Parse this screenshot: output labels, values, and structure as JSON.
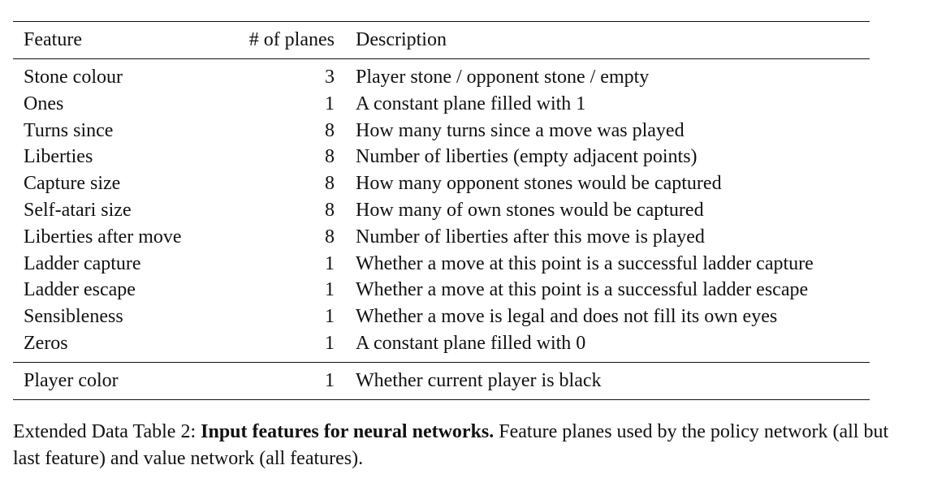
{
  "table": {
    "headers": {
      "feature": "Feature",
      "planes": "# of planes",
      "description": "Description"
    },
    "rows": [
      {
        "feature": "Stone colour",
        "planes": "3",
        "description": "Player stone / opponent stone / empty"
      },
      {
        "feature": "Ones",
        "planes": "1",
        "description": "A constant plane filled with 1"
      },
      {
        "feature": "Turns since",
        "planes": "8",
        "description": "How many turns since a move was played"
      },
      {
        "feature": "Liberties",
        "planes": "8",
        "description": "Number of liberties (empty adjacent points)"
      },
      {
        "feature": "Capture size",
        "planes": "8",
        "description": "How many opponent stones would be captured"
      },
      {
        "feature": "Self-atari size",
        "planes": "8",
        "description": "How many of own stones would be captured"
      },
      {
        "feature": "Liberties after move",
        "planes": "8",
        "description": "Number of liberties after this move is played"
      },
      {
        "feature": "Ladder capture",
        "planes": "1",
        "description": "Whether a move at this point is a successful ladder capture"
      },
      {
        "feature": "Ladder escape",
        "planes": "1",
        "description": "Whether a move at this point is a successful ladder escape"
      },
      {
        "feature": "Sensibleness",
        "planes": "1",
        "description": "Whether a move is legal and does not fill its own eyes"
      },
      {
        "feature": "Zeros",
        "planes": "1",
        "description": "A constant plane filled with 0"
      }
    ],
    "extra_row": {
      "feature": "Player color",
      "planes": "1",
      "description": "Whether current player is black"
    }
  },
  "caption": {
    "prefix": "Extended Data Table 2: ",
    "bold": "Input features for neural networks.",
    "rest": " Feature planes used by the policy network (all but last feature) and value network (all features)."
  }
}
